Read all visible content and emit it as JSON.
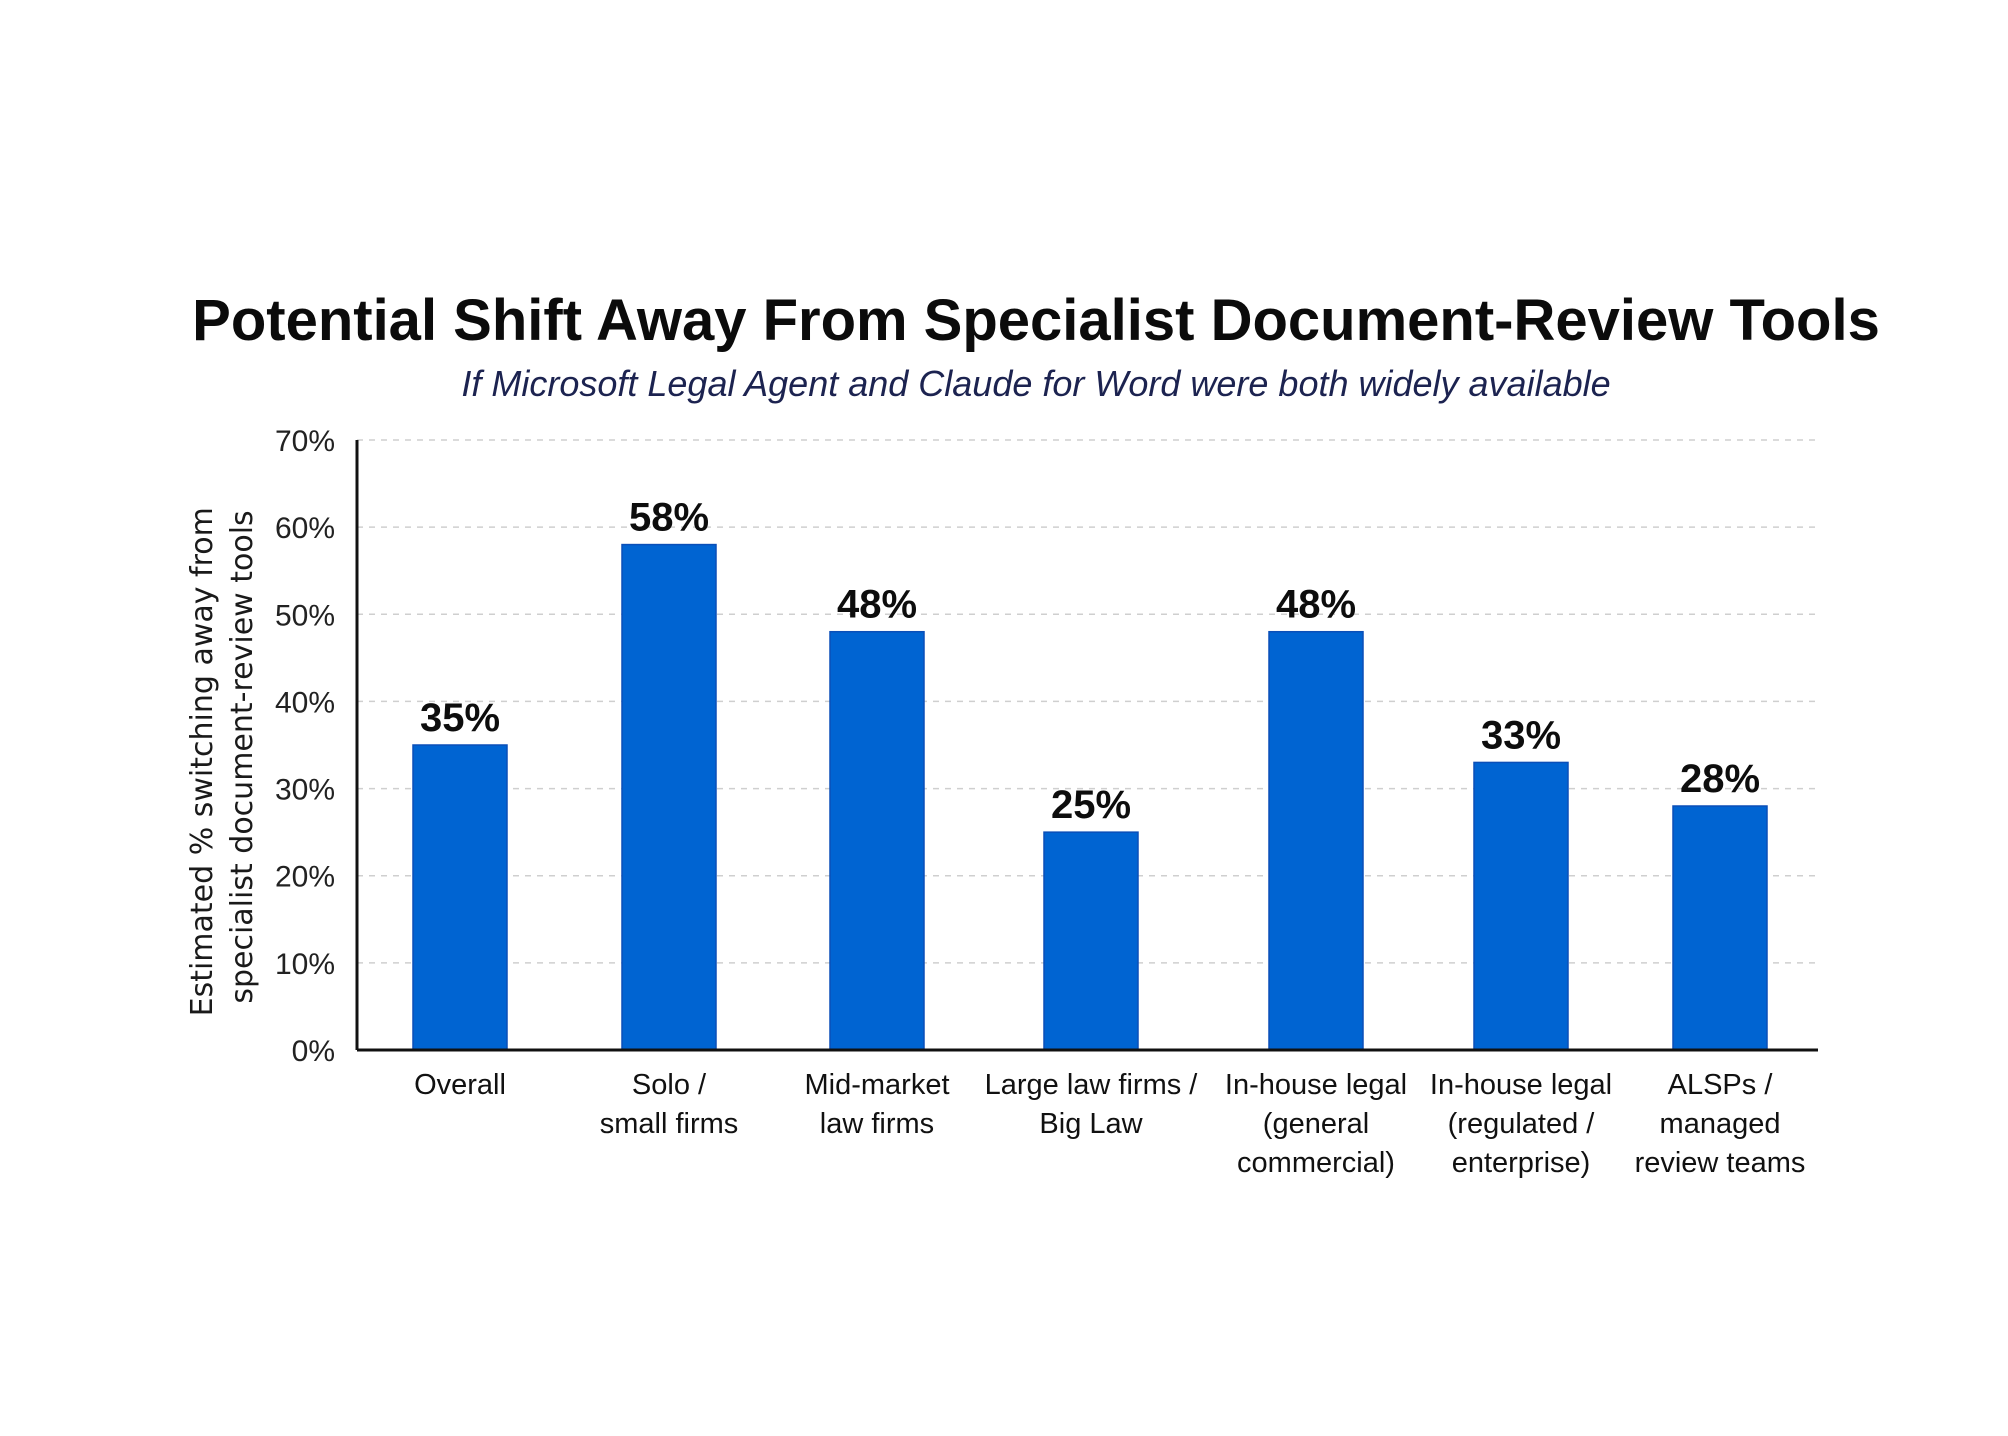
{
  "chart_data": {
    "type": "bar",
    "title": "Potential Shift Away From Specialist Document-Review Tools",
    "subtitle": "If Microsoft Legal Agent and Claude for Word were both widely available",
    "ylabel": [
      "Estimated % switching away from",
      "specialist document-review tools"
    ],
    "xlabel": "",
    "categories": [
      [
        "Overall"
      ],
      [
        "Solo /",
        "small firms"
      ],
      [
        "Mid-market",
        "law firms"
      ],
      [
        "Large law firms /",
        "Big Law"
      ],
      [
        "In-house legal",
        "(general",
        "commercial)"
      ],
      [
        "In-house legal",
        "(regulated /",
        "enterprise)"
      ],
      [
        "ALSPs /",
        "managed",
        "review teams"
      ]
    ],
    "values": [
      35,
      58,
      48,
      25,
      48,
      33,
      28
    ],
    "value_labels": [
      "35%",
      "58%",
      "48%",
      "25%",
      "48%",
      "33%",
      "28%"
    ],
    "ylim": [
      0,
      70
    ],
    "yticks": [
      0,
      10,
      20,
      30,
      40,
      50,
      60,
      70
    ],
    "ytick_labels": [
      "0%",
      "10%",
      "20%",
      "30%",
      "40%",
      "50%",
      "60%",
      "70%"
    ],
    "grid": true,
    "legend": "none",
    "bar_color": "#0064d2"
  }
}
